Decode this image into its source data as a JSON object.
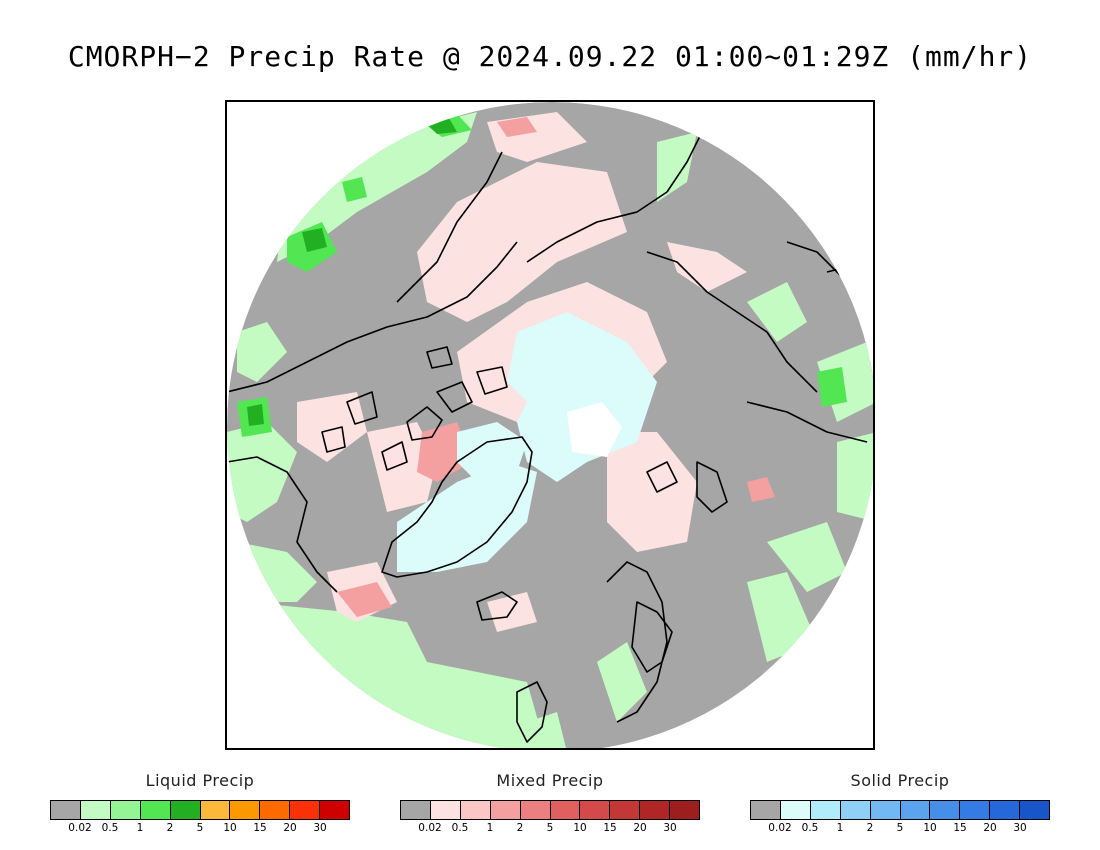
{
  "title": "CMORPH−2 Precip Rate @ 2024.09.22 01:00~01:29Z (mm/hr)",
  "legends": [
    {
      "id": "liquid",
      "title": "Liquid Precip",
      "ticks": [
        "0.02",
        "0.5",
        "1",
        "2",
        "5",
        "10",
        "15",
        "20",
        "30"
      ],
      "colors": [
        "#a6a6a6",
        "#c3fbc3",
        "#93f593",
        "#53e653",
        "#22b022",
        "#fcb83a",
        "#fc9900",
        "#fc6a00",
        "#fa3008",
        "#cf0000"
      ]
    },
    {
      "id": "mixed",
      "title": "Mixed Precip",
      "ticks": [
        "0.02",
        "0.5",
        "1",
        "2",
        "5",
        "10",
        "15",
        "20",
        "30"
      ],
      "colors": [
        "#a6a6a6",
        "#fde2e2",
        "#fbc6c6",
        "#f4a0a0",
        "#ec7f7f",
        "#e06060",
        "#d44a4a",
        "#c33737",
        "#b02626",
        "#9c1e1e"
      ]
    },
    {
      "id": "solid",
      "title": "Solid Precip",
      "ticks": [
        "0.02",
        "0.5",
        "1",
        "2",
        "5",
        "10",
        "15",
        "20",
        "30"
      ],
      "colors": [
        "#a6a6a6",
        "#dcfcfc",
        "#b0ecf9",
        "#8fd0f6",
        "#72b8f2",
        "#5aa4ef",
        "#458fe9",
        "#347be3",
        "#2468d9",
        "#1755c9"
      ]
    }
  ]
}
